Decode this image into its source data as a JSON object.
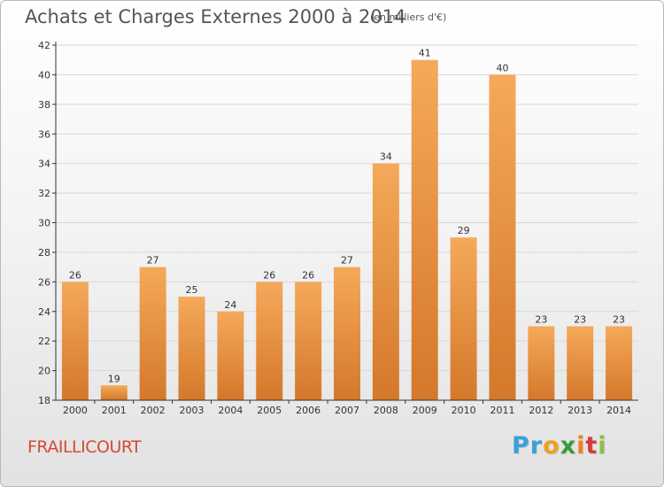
{
  "title": "Achats et Charges Externes 2000 à 2014",
  "subtitle": "(en milliers d'€)",
  "commune": "FRAILLICOURT",
  "logo": {
    "letters": [
      "P",
      "r",
      "o",
      "x",
      "i",
      "t",
      "i"
    ],
    "colors": [
      "#3aa0d8",
      "#3aa0d8",
      "#f0a020",
      "#3a9a3a",
      "#f08020",
      "#d83a3a",
      "#8cc040"
    ]
  },
  "colors": {
    "bar_light": "#f5a95a",
    "bar_dark": "#d4782a",
    "grid": "#d8d8d8",
    "axis": "#333333",
    "label": "#333333"
  },
  "chart_data": {
    "type": "bar",
    "title": "Achats et Charges Externes 2000 à 2014",
    "xlabel": "",
    "ylabel": "",
    "categories": [
      "2000",
      "2001",
      "2002",
      "2003",
      "2004",
      "2005",
      "2006",
      "2007",
      "2008",
      "2009",
      "2010",
      "2011",
      "2012",
      "2013",
      "2014"
    ],
    "values": [
      26,
      19,
      27,
      25,
      24,
      26,
      26,
      27,
      34,
      41,
      29,
      40,
      23,
      23,
      23
    ],
    "ylim": [
      18,
      42
    ],
    "yticks": [
      18,
      20,
      22,
      24,
      26,
      28,
      30,
      32,
      34,
      36,
      38,
      40,
      42
    ],
    "grid": true,
    "legend": "none"
  }
}
